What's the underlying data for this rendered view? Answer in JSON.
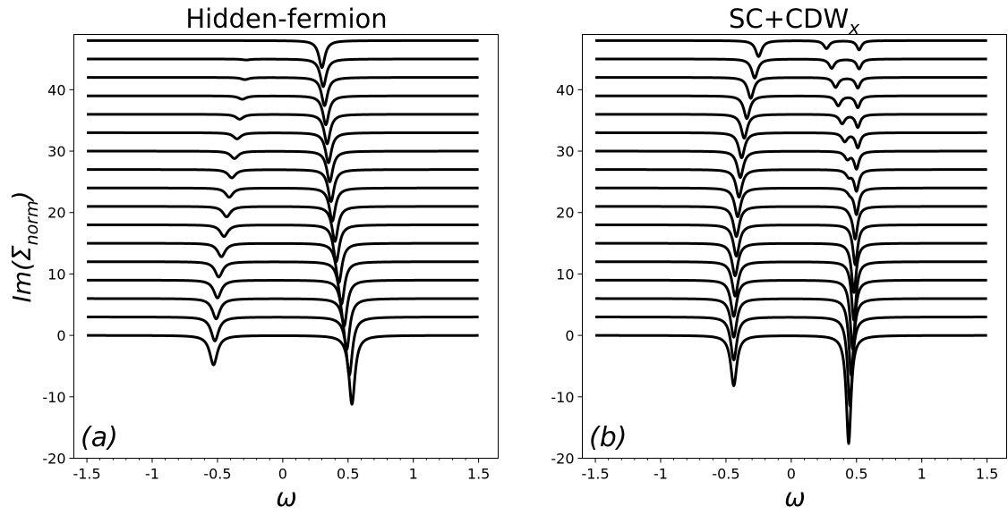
{
  "chart_data": [
    {
      "type": "line",
      "panel": "(a)",
      "title": "Hidden-fermion",
      "xlabel": "ω",
      "ylabel": "Im(Σnorm)",
      "ylabel_main": "Im(Σ",
      "ylabel_sub": "norm",
      "ylabel_close": ")",
      "xlim": [
        -1.6,
        1.65
      ],
      "ylim": [
        -20,
        49
      ],
      "xticks": [
        "-1.5",
        "-1",
        "-0.5",
        "0",
        "0.5",
        "1",
        "1.5"
      ],
      "xtick_values": [
        -1.5,
        -1,
        -0.5,
        0,
        0.5,
        1,
        1.5
      ],
      "yticks": [
        "-20",
        "-10",
        "0",
        "10",
        "20",
        "30",
        "40"
      ],
      "ytick_values": [
        -20,
        -10,
        0,
        10,
        20,
        30,
        40
      ],
      "grid": false,
      "series_description": "17 curves vertically offset by 3 (baselines 0 to 48); each curve has a left dip that moves from about -0.53 to -0.27 and shrinks upward, and a right dip that moves from about 0.53 to 0.30",
      "offsets": [
        0,
        3,
        6,
        9,
        12,
        15,
        18,
        21,
        24,
        27,
        30,
        33,
        36,
        39,
        42,
        45,
        48
      ],
      "left_dip_position": [
        -0.53,
        -0.52,
        -0.51,
        -0.5,
        -0.49,
        -0.47,
        -0.45,
        -0.43,
        -0.41,
        -0.39,
        -0.37,
        -0.35,
        -0.33,
        -0.31,
        -0.29,
        -0.28,
        -0.27
      ],
      "left_dip_depth": [
        4.8,
        3.9,
        3.3,
        2.9,
        2.5,
        2.2,
        1.9,
        1.7,
        1.5,
        1.35,
        1.2,
        1.0,
        0.8,
        0.55,
        0.35,
        0.15,
        0.0
      ],
      "right_dip_position": [
        0.53,
        0.51,
        0.49,
        0.47,
        0.45,
        0.43,
        0.41,
        0.4,
        0.38,
        0.37,
        0.36,
        0.35,
        0.34,
        0.33,
        0.32,
        0.31,
        0.3
      ],
      "right_dip_depth": [
        11.2,
        9.5,
        8.3,
        7.5,
        6.9,
        6.4,
        6.0,
        5.7,
        5.4,
        5.2,
        5.0,
        4.9,
        4.8,
        4.7,
        4.6,
        4.5,
        4.4
      ]
    },
    {
      "type": "line",
      "panel": "(b)",
      "title": "SC+CDWx",
      "title_main": "SC+CDW",
      "title_sub": "x",
      "xlabel": "ω",
      "xlim": [
        -1.6,
        1.65
      ],
      "ylim": [
        -20,
        49
      ],
      "xticks": [
        "-1.5",
        "-1",
        "-0.5",
        "0",
        "0.5",
        "1",
        "1.5"
      ],
      "xtick_values": [
        -1.5,
        -1,
        -0.5,
        0,
        0.5,
        1,
        1.5
      ],
      "yticks": [
        "-20",
        "-10",
        "0",
        "10",
        "20",
        "30",
        "40"
      ],
      "ytick_values": [
        -20,
        -10,
        0,
        10,
        20,
        30,
        40
      ],
      "grid": false,
      "series_description": "17 curves vertically offset by 3 (baselines 0 to 48); a large left dip near -0.45 moving to about -0.25, a large right dip near 0.45, and a small secondary dip appearing between about 0.27 and 0.45 in the upper curves",
      "offsets": [
        0,
        3,
        6,
        9,
        12,
        15,
        18,
        21,
        24,
        27,
        30,
        33,
        36,
        39,
        42,
        45,
        48
      ],
      "left_dip_position": [
        -0.44,
        -0.44,
        -0.44,
        -0.44,
        -0.43,
        -0.43,
        -0.42,
        -0.42,
        -0.41,
        -0.4,
        -0.39,
        -0.38,
        -0.36,
        -0.34,
        -0.31,
        -0.28,
        -0.25
      ],
      "left_dip_depth": [
        8.2,
        7.0,
        6.3,
        5.9,
        5.6,
        5.3,
        5.1,
        4.9,
        4.7,
        4.5,
        4.3,
        4.1,
        3.9,
        3.7,
        3.4,
        3.1,
        2.6
      ],
      "right_dip_position": [
        0.44,
        0.45,
        0.46,
        0.47,
        0.48,
        0.48,
        0.49,
        0.49,
        0.5,
        0.5,
        0.5,
        0.51,
        0.51,
        0.51,
        0.51,
        0.52,
        0.52
      ],
      "right_dip_depth": [
        17.6,
        14.5,
        12.5,
        11.2,
        9.5,
        8.0,
        6.5,
        5.2,
        4.2,
        3.4,
        2.8,
        2.4,
        2.1,
        1.9,
        1.7,
        1.6,
        1.5
      ],
      "secondary_dip_position": [
        0.45,
        0.45,
        0.45,
        0.45,
        0.45,
        0.45,
        0.45,
        0.45,
        0.45,
        0.44,
        0.43,
        0.41,
        0.39,
        0.36,
        0.34,
        0.31,
        0.27
      ],
      "secondary_dip_depth": [
        0,
        0,
        0,
        0,
        0,
        0,
        0,
        0.4,
        0.7,
        1.0,
        1.2,
        1.4,
        1.5,
        1.6,
        1.6,
        1.5,
        1.3
      ]
    }
  ]
}
